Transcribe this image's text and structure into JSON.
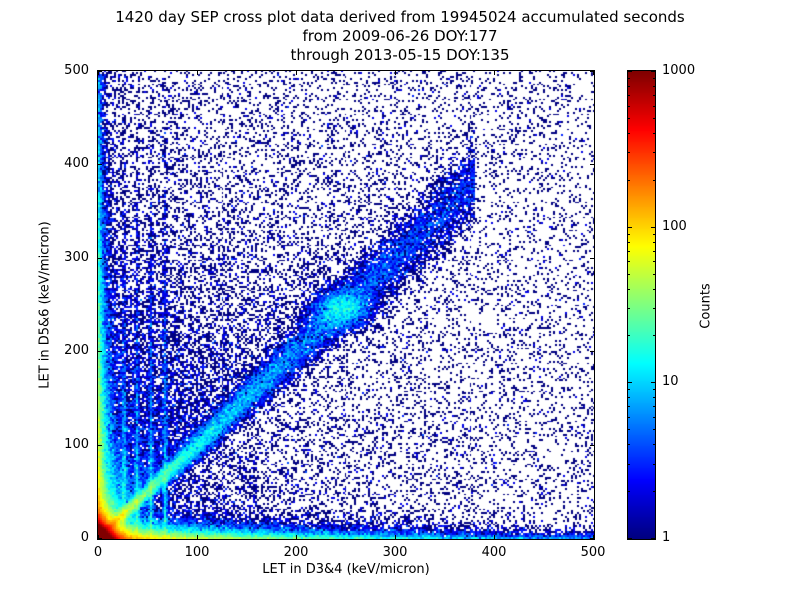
{
  "figure": {
    "background": "#ffffff"
  },
  "chart_data": {
    "type": "heatmap",
    "title_lines": [
      "1420 day SEP cross plot data derived from 19945024 accumulated seconds",
      "from 2009-06-26 DOY:177",
      "through 2013-05-15 DOY:135"
    ],
    "xlabel": "LET in D3&4 (keV/micron)",
    "ylabel": "LET in D5&6 (keV/micron)",
    "xlim": [
      0,
      500
    ],
    "ylim": [
      0,
      500
    ],
    "xticks": [
      0,
      100,
      200,
      300,
      400,
      500
    ],
    "yticks": [
      0,
      100,
      200,
      300,
      400,
      500
    ],
    "grid": false,
    "colormap": "jet",
    "point_color_min": "#00008f",
    "point_color_max": "#800000",
    "colorbar": {
      "label": "Counts",
      "scale": "log",
      "min": 1,
      "max": 1000,
      "ticks": [
        1,
        10,
        100,
        1000
      ],
      "position": "right"
    },
    "bins": [
      250,
      250
    ],
    "seed": 177,
    "density_features": [
      {
        "label": "origin-hotspot-core",
        "kind": "exp2d",
        "n": 110000,
        "x_scale": 4.5,
        "y_scale": 4.5
      },
      {
        "label": "origin-hotspot-halo",
        "kind": "exp2d",
        "n": 25000,
        "x_scale": 12,
        "y_scale": 12
      },
      {
        "label": "coincidence-diagonal-band",
        "kind": "diagonal",
        "n": 26000,
        "max": 380,
        "power": 2.0,
        "spread_base": 2.5,
        "spread_growth": 0.055
      },
      {
        "label": "diagonal-clump",
        "kind": "gauss2d",
        "n": 3000,
        "cx": 245,
        "cy": 245,
        "sx": 16,
        "sy": 11
      },
      {
        "label": "bottom-horizontal-band",
        "kind": "band_x",
        "n": 18000,
        "x_scale": 110,
        "y_scale": 6
      },
      {
        "label": "left-vertical-band",
        "kind": "band_y",
        "n": 18000,
        "x_scale": 6,
        "y_scale": 120
      },
      {
        "label": "bottom-edge-strip",
        "kind": "band_x",
        "n": 6000,
        "x_scale": 400,
        "y_scale": 2.5
      },
      {
        "label": "left-edge-strip",
        "kind": "band_y",
        "n": 6000,
        "x_scale": 2.5,
        "y_scale": 400
      },
      {
        "label": "vertical-streaks",
        "kind": "streaks",
        "n": 5500,
        "xs": [
          26,
          39,
          53,
          67
        ],
        "x_sigma": 1.2,
        "y_scale": 130
      },
      {
        "label": "upper-left-fan",
        "kind": "fan",
        "n": 16000,
        "r_scale": 230,
        "angle_min": 45,
        "angle_max": 90
      },
      {
        "label": "lower-right-fan",
        "kind": "fan",
        "n": 5000,
        "r_scale": 260,
        "angle_min": 0,
        "angle_max": 45
      },
      {
        "label": "diffuse-background",
        "kind": "uniform",
        "n": 9000
      }
    ]
  }
}
